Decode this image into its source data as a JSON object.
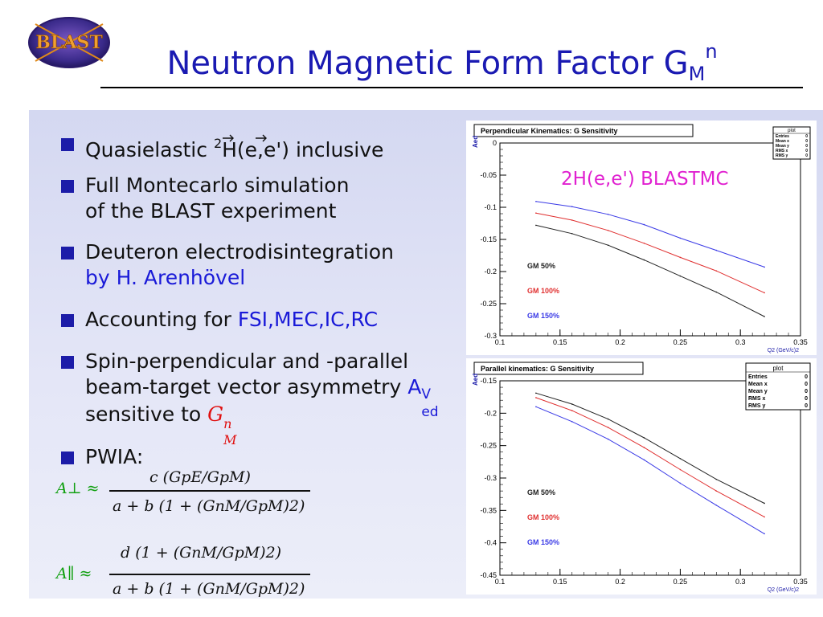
{
  "logo": {
    "text": "BLAST"
  },
  "title": {
    "main": "Neutron Magnetic Form Factor G",
    "sub": "M",
    "sup": "n"
  },
  "bullets": [
    {
      "pre": "Quasielastic ",
      "sup": "2",
      "rest": "H(e,e') inclusive"
    },
    {
      "line1": "Full Montecarlo simulation",
      "line2": "of the BLAST experiment"
    },
    {
      "line1": "Deuteron electrodisintegration",
      "line2": "by H. Arenhövel"
    },
    {
      "pre": "Accounting for ",
      "accent": "FSI,MEC,IC,RC"
    },
    {
      "line1": "Spin-perpendicular and -parallel",
      "line2_pre": "beam-target vector asymmetry ",
      "asym": "A",
      "asym_sup": "V",
      "asym_sub": "ed",
      "line3_pre": "sensitive to ",
      "line3_accent": "G",
      "line3_accent_sup": "n",
      "line3_accent_sub": "M"
    },
    {
      "pre": "PWIA:"
    }
  ],
  "formulas": {
    "perp_lhs": "A⊥ ≈",
    "perp_num": "c (GpE/GpM)",
    "perp_den": "a + b (1 + (GnM/GpM)2)",
    "par_lhs": "A∥ ≈",
    "par_num": "d (1 + (GnM/GpM)2)",
    "par_den": "a + b (1 + (GnM/GpM)2)"
  },
  "chart_data": [
    {
      "type": "line",
      "title": "Perpendicular Kinematics: G  Sensitivity",
      "annotation": "2H(e,e') BLASTMC",
      "xlabel": "Q2 (GeV/c)2",
      "ylabel": "Aed",
      "xlim": [
        0.1,
        0.35
      ],
      "ylim": [
        -0.3,
        0
      ],
      "xticks": [
        "0.1",
        "0.15",
        "0.2",
        "0.25",
        "0.3",
        "0.35"
      ],
      "yticks": [
        "0",
        "-0.05",
        "-0.1",
        "-0.15",
        "-0.2",
        "-0.25",
        "-0.3"
      ],
      "stats_box": {
        "title": "plot",
        "rows": [
          [
            "Entries",
            "0"
          ],
          [
            "Mean x",
            "0"
          ],
          [
            "Mean y",
            "0"
          ],
          [
            "RMS x",
            "0"
          ],
          [
            "RMS y",
            "0"
          ]
        ]
      },
      "series": [
        {
          "name": "GM 50%",
          "color": "#222222",
          "x": [
            0.13,
            0.16,
            0.19,
            0.22,
            0.25,
            0.28,
            0.32
          ],
          "y": [
            -0.128,
            -0.141,
            -0.159,
            -0.182,
            -0.207,
            -0.232,
            -0.27
          ]
        },
        {
          "name": "GM 100%",
          "color": "#e03030",
          "x": [
            0.13,
            0.16,
            0.19,
            0.22,
            0.25,
            0.28,
            0.32
          ],
          "y": [
            -0.109,
            -0.12,
            -0.136,
            -0.156,
            -0.178,
            -0.199,
            -0.233
          ]
        },
        {
          "name": "GM 150%",
          "color": "#3a3ae6",
          "x": [
            0.13,
            0.16,
            0.19,
            0.22,
            0.25,
            0.28,
            0.32
          ],
          "y": [
            -0.091,
            -0.099,
            -0.111,
            -0.127,
            -0.148,
            -0.167,
            -0.193
          ]
        }
      ]
    },
    {
      "type": "line",
      "title": "Parallel kinematics: G  Sensitivity",
      "xlabel": "Q2 (GeV/c)2",
      "ylabel": "Aed",
      "xlim": [
        0.1,
        0.35
      ],
      "ylim": [
        -0.45,
        -0.15
      ],
      "xticks": [
        "0.1",
        "0.15",
        "0.2",
        "0.25",
        "0.3",
        "0.35"
      ],
      "yticks": [
        "-0.15",
        "-0.2",
        "-0.25",
        "-0.3",
        "-0.35",
        "-0.4",
        "-0.45"
      ],
      "stats_box": {
        "title": "plot",
        "rows": [
          [
            "Entries",
            "0"
          ],
          [
            "Mean x",
            "0"
          ],
          [
            "Mean y",
            "0"
          ],
          [
            "RMS x",
            "0"
          ],
          [
            "RMS y",
            "0"
          ]
        ]
      },
      "series": [
        {
          "name": "GM 50%",
          "color": "#222222",
          "x": [
            0.13,
            0.16,
            0.19,
            0.22,
            0.25,
            0.28,
            0.32
          ],
          "y": [
            -0.169,
            -0.186,
            -0.209,
            -0.238,
            -0.27,
            -0.302,
            -0.339
          ]
        },
        {
          "name": "GM 100%",
          "color": "#e03030",
          "x": [
            0.13,
            0.16,
            0.19,
            0.22,
            0.25,
            0.28,
            0.32
          ],
          "y": [
            -0.176,
            -0.196,
            -0.222,
            -0.253,
            -0.287,
            -0.32,
            -0.36
          ]
        },
        {
          "name": "GM 150%",
          "color": "#3a3ae6",
          "x": [
            0.13,
            0.16,
            0.19,
            0.22,
            0.25,
            0.28,
            0.32
          ],
          "y": [
            -0.19,
            -0.213,
            -0.24,
            -0.272,
            -0.308,
            -0.342,
            -0.386
          ]
        }
      ]
    }
  ]
}
